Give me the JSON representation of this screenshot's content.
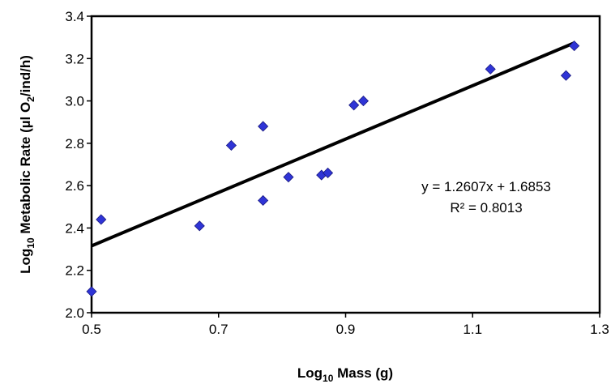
{
  "chart_data": {
    "type": "scatter",
    "xlabel": {
      "base": "Log",
      "sub": "10",
      "rest": " Mass (g)"
    },
    "ylabel": {
      "base": "Log",
      "sub": "10",
      "mid": " Metabolic Rate (µl O",
      "sub2": "2",
      "rest": "/ind/h)"
    },
    "xlim": [
      0.5,
      1.3
    ],
    "ylim": [
      2.0,
      3.4
    ],
    "x_ticks": [
      "0.5",
      "0.7",
      "0.9",
      "1.1",
      "1.3"
    ],
    "y_ticks": [
      "2.0",
      "2.2",
      "2.4",
      "2.6",
      "2.8",
      "3.0",
      "3.2",
      "3.4"
    ],
    "grid": false,
    "marker": "diamond",
    "marker_color": "#2f34d6",
    "points": [
      {
        "x": 0.5,
        "y": 2.1
      },
      {
        "x": 0.515,
        "y": 2.44
      },
      {
        "x": 0.67,
        "y": 2.41
      },
      {
        "x": 0.72,
        "y": 2.79
      },
      {
        "x": 0.77,
        "y": 2.88
      },
      {
        "x": 0.77,
        "y": 2.53
      },
      {
        "x": 0.81,
        "y": 2.64
      },
      {
        "x": 0.862,
        "y": 2.65
      },
      {
        "x": 0.872,
        "y": 2.66
      },
      {
        "x": 0.913,
        "y": 2.98
      },
      {
        "x": 0.928,
        "y": 3.0
      },
      {
        "x": 1.128,
        "y": 3.15
      },
      {
        "x": 1.247,
        "y": 3.12
      },
      {
        "x": 1.26,
        "y": 3.26
      }
    ],
    "trendline": {
      "slope": 1.2607,
      "intercept": 1.6853,
      "x_range": [
        0.5,
        1.26
      ],
      "color": "#000000"
    },
    "equation": "y = 1.2607x + 1.6853",
    "r_squared": "R² = 0.8013"
  }
}
